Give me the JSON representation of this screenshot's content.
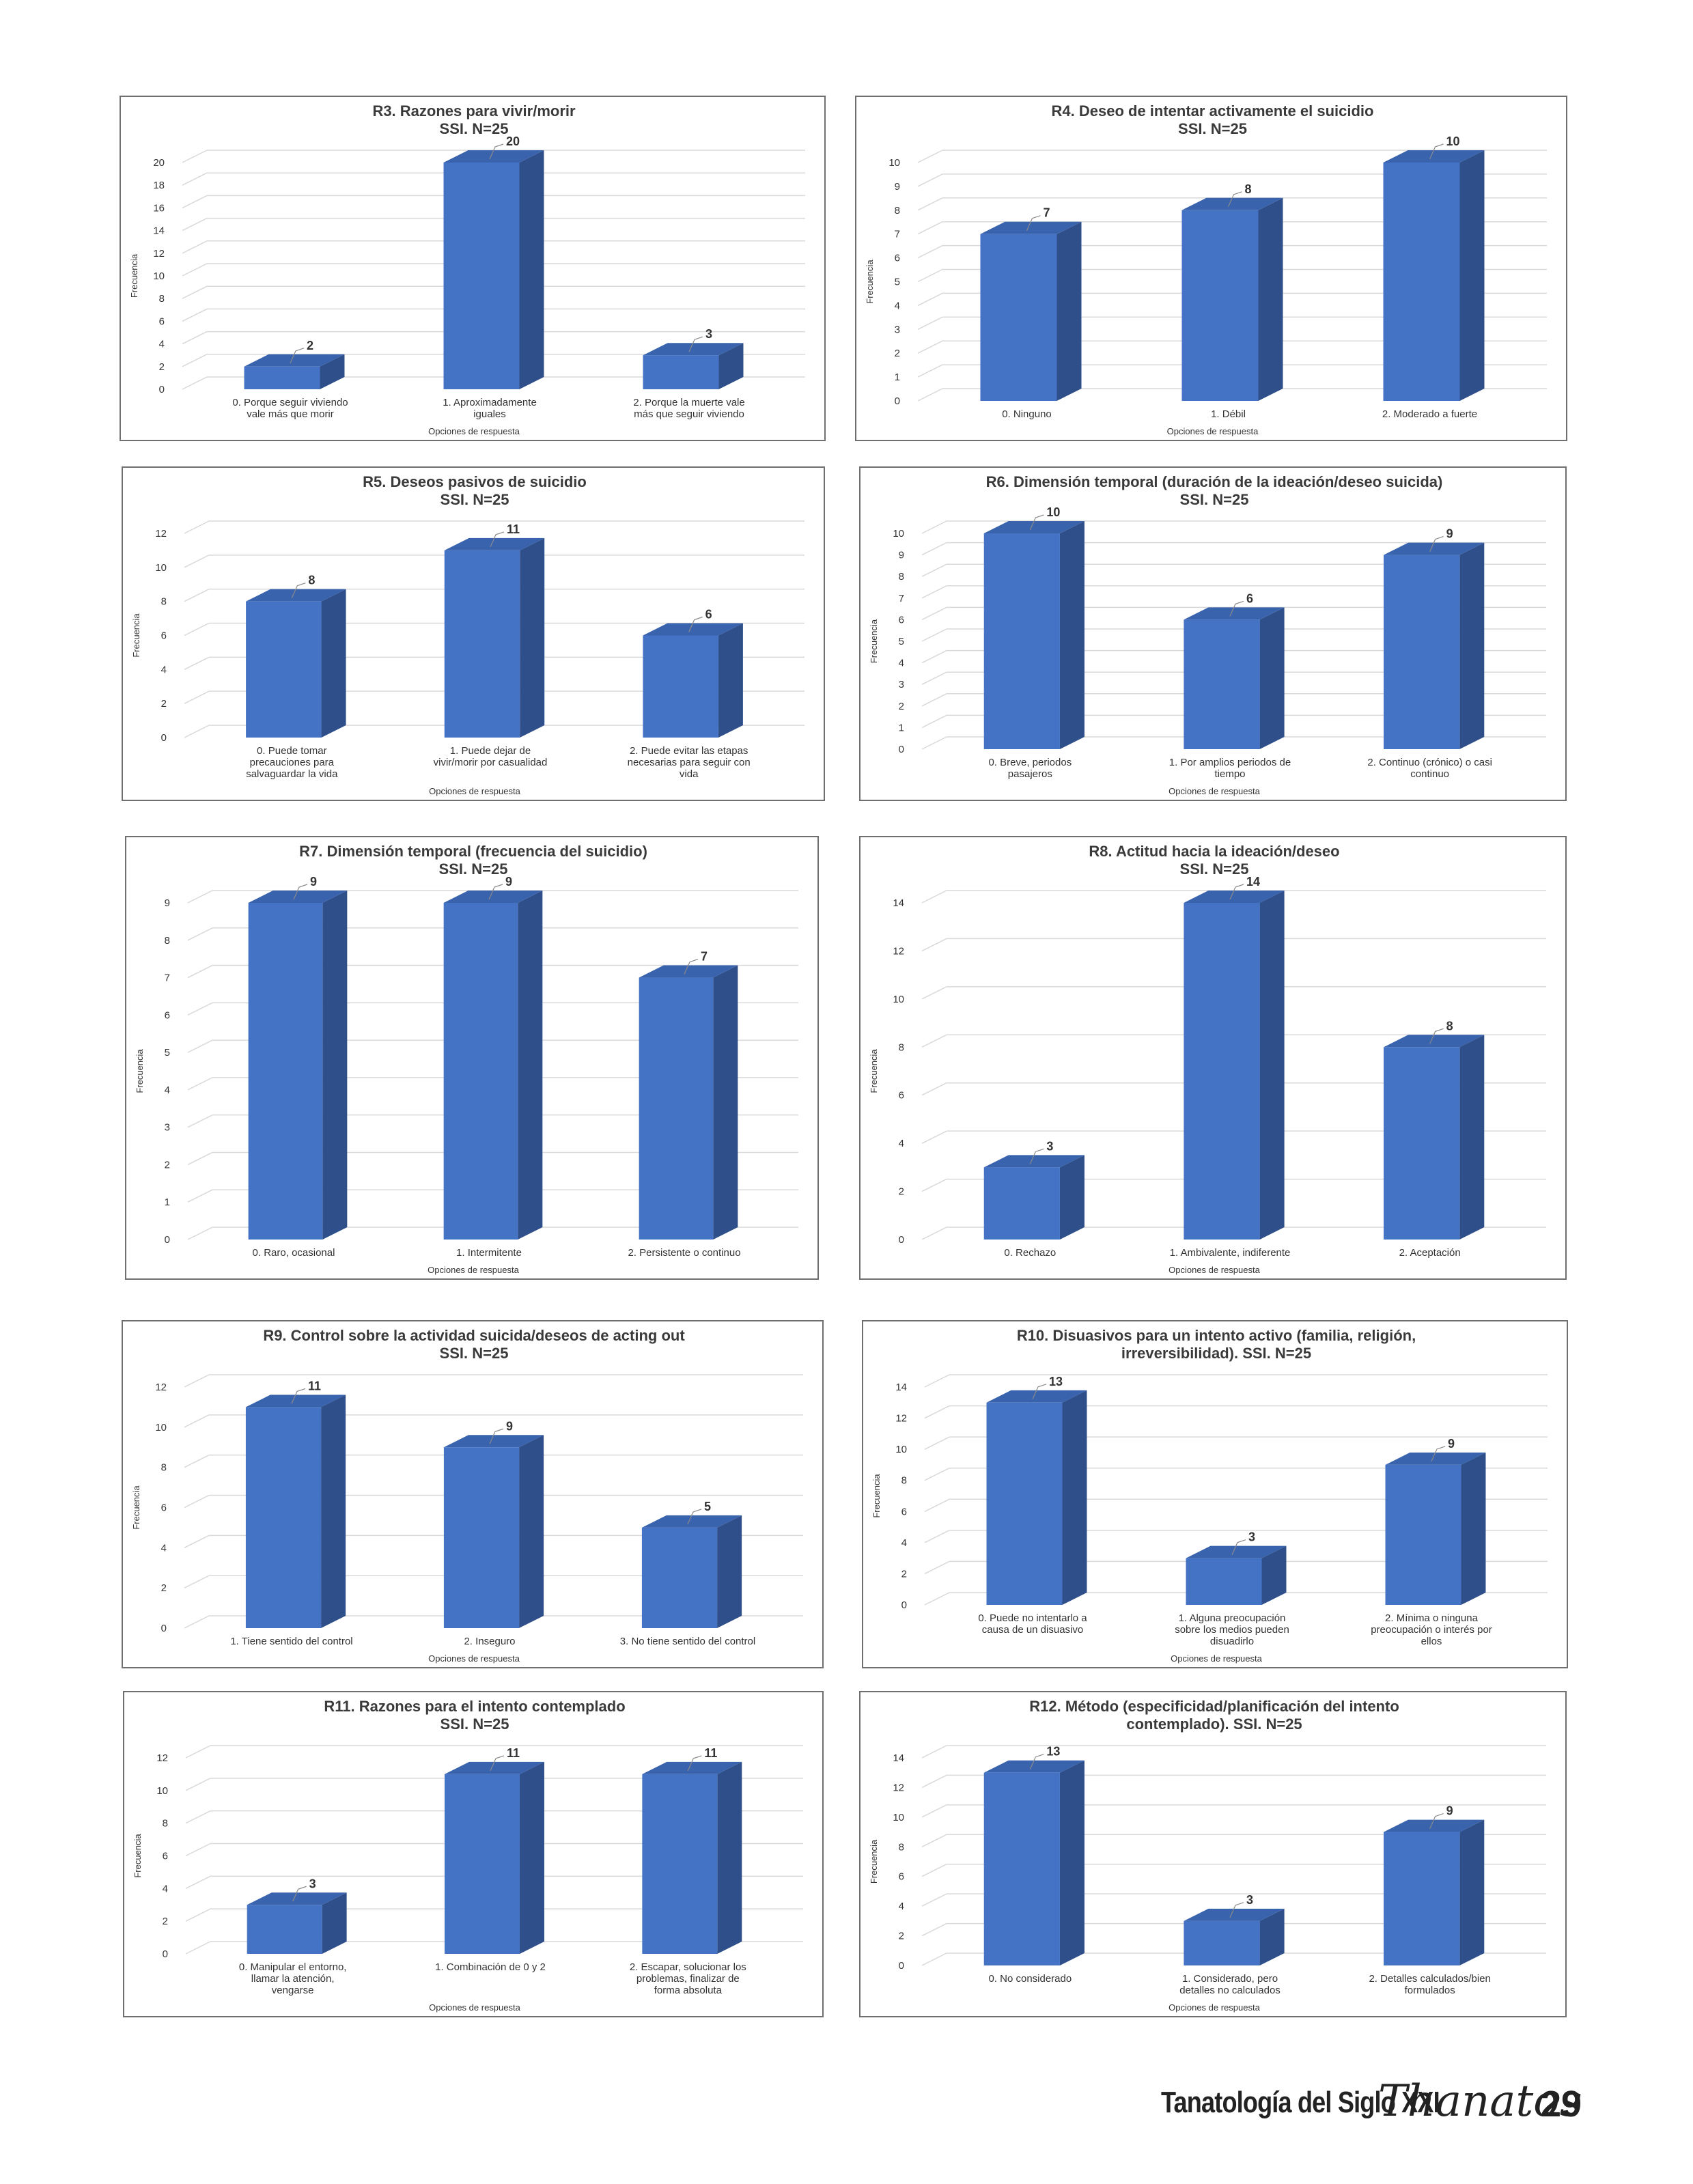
{
  "footer": {
    "publication": "Tanatología del Siglo XXI",
    "logo": "Thanatos",
    "page": "29"
  },
  "colors": {
    "bar_front": "#4472c4",
    "bar_side": "#2f4f8a",
    "bar_top": "#3a63ad",
    "grid": "#d9d9d9",
    "text": "#333333"
  },
  "chart_data": [
    {
      "type": "bar",
      "title": "R3. Razones para vivir/morir",
      "subtitle": "SSI. N=25",
      "xlabel": "Opciones de respuesta",
      "ylabel": "Frecuencia",
      "categories": [
        [
          "0. Porque seguir viviendo",
          "vale más que morir"
        ],
        [
          "1. Aproximadamente",
          "iguales"
        ],
        [
          "2. Porque la muerte vale",
          "más que seguir viviendo"
        ]
      ],
      "values": [
        2,
        20,
        3
      ],
      "ylim": [
        0,
        20
      ],
      "yticks": [
        0,
        2,
        4,
        6,
        8,
        10,
        12,
        14,
        16,
        18,
        20
      ],
      "grid": true
    },
    {
      "type": "bar",
      "title": "R4. Deseo de intentar activamente el suicidio",
      "subtitle": "SSI. N=25",
      "xlabel": "Opciones de respuesta",
      "ylabel": "Frecuencia",
      "categories": [
        [
          "0. Ninguno"
        ],
        [
          "1. Débil"
        ],
        [
          "2. Moderado a fuerte"
        ]
      ],
      "values": [
        7,
        8,
        10
      ],
      "ylim": [
        0,
        10
      ],
      "yticks": [
        0,
        1,
        2,
        3,
        4,
        5,
        6,
        7,
        8,
        9,
        10
      ],
      "grid": true
    },
    {
      "type": "bar",
      "title": "R5. Deseos pasivos de suicidio",
      "subtitle": "SSI. N=25",
      "xlabel": "Opciones de respuesta",
      "ylabel": "Frecuencia",
      "categories": [
        [
          "0. Puede tomar",
          "precauciones para",
          "salvaguardar la vida"
        ],
        [
          "1. Puede dejar de",
          "vivir/morir por casualidad"
        ],
        [
          "2. Puede evitar las etapas",
          "necesarias para seguir con",
          "vida"
        ]
      ],
      "values": [
        8,
        11,
        6
      ],
      "ylim": [
        0,
        12
      ],
      "yticks": [
        0,
        2,
        4,
        6,
        8,
        10,
        12
      ],
      "grid": true
    },
    {
      "type": "bar",
      "title": "R6. Dimensión temporal (duración de la ideación/deseo suicida)",
      "subtitle": "SSI. N=25",
      "xlabel": "Opciones de respuesta",
      "ylabel": "Frecuencia",
      "categories": [
        [
          "0. Breve, periodos",
          "pasajeros"
        ],
        [
          "1. Por amplios periodos de",
          "tiempo"
        ],
        [
          "2. Continuo (crónico) o casi",
          "continuo"
        ]
      ],
      "values": [
        10,
        6,
        9
      ],
      "ylim": [
        0,
        10
      ],
      "yticks": [
        0,
        1,
        2,
        3,
        4,
        5,
        6,
        7,
        8,
        9,
        10
      ],
      "grid": true
    },
    {
      "type": "bar",
      "title": "R7. Dimensión temporal (frecuencia del suicidio)",
      "subtitle": "SSI. N=25",
      "xlabel": "Opciones de respuesta",
      "ylabel": "Frecuencia",
      "categories": [
        [
          "0. Raro, ocasional"
        ],
        [
          "1. Intermitente"
        ],
        [
          "2. Persistente o continuo"
        ]
      ],
      "values": [
        9,
        9,
        7
      ],
      "ylim": [
        0,
        9
      ],
      "yticks": [
        0,
        1,
        2,
        3,
        4,
        5,
        6,
        7,
        8,
        9
      ],
      "grid": true
    },
    {
      "type": "bar",
      "title": "R8. Actitud hacia la ideación/deseo",
      "subtitle": "SSI. N=25",
      "xlabel": "Opciones de respuesta",
      "ylabel": "Frecuencia",
      "categories": [
        [
          "0. Rechazo"
        ],
        [
          "1. Ambivalente, indiferente"
        ],
        [
          "2. Aceptación"
        ]
      ],
      "values": [
        3,
        14,
        8
      ],
      "ylim": [
        0,
        14
      ],
      "yticks": [
        0,
        2,
        4,
        6,
        8,
        10,
        12,
        14
      ],
      "grid": true
    },
    {
      "type": "bar",
      "title": "R9. Control sobre la actividad suicida/deseos de acting out",
      "subtitle": "SSI. N=25",
      "xlabel": "Opciones de respuesta",
      "ylabel": "Frecuencia",
      "categories": [
        [
          "1. Tiene sentido del control"
        ],
        [
          "2. Inseguro"
        ],
        [
          "3. No tiene sentido del control"
        ]
      ],
      "values": [
        11,
        9,
        5
      ],
      "ylim": [
        0,
        12
      ],
      "yticks": [
        0,
        2,
        4,
        6,
        8,
        10,
        12
      ],
      "grid": true
    },
    {
      "type": "bar",
      "title": "R10. Disuasivos para un intento activo (familia, religión,",
      "subtitle": "irreversibilidad). SSI. N=25",
      "xlabel": "Opciones de respuesta",
      "ylabel": "Frecuencia",
      "categories": [
        [
          "0. Puede no intentarlo a",
          "causa de un disuasivo"
        ],
        [
          "1. Alguna preocupación",
          "sobre los medios pueden",
          "disuadirlo"
        ],
        [
          "2. Mínima o ninguna",
          "preocupación o interés por",
          "ellos"
        ]
      ],
      "values": [
        13,
        3,
        9
      ],
      "ylim": [
        0,
        14
      ],
      "yticks": [
        0,
        2,
        4,
        6,
        8,
        10,
        12,
        14
      ],
      "grid": true
    },
    {
      "type": "bar",
      "title": "R11. Razones para el intento contemplado",
      "subtitle": "SSI. N=25",
      "xlabel": "Opciones de respuesta",
      "ylabel": "Frecuencia",
      "categories": [
        [
          "0. Manipular el entorno,",
          "llamar la atención,",
          "vengarse"
        ],
        [
          "1. Combinación de 0 y 2"
        ],
        [
          "2. Escapar, solucionar los",
          "problemas, finalizar de",
          "forma absoluta"
        ]
      ],
      "values": [
        3,
        11,
        11
      ],
      "ylim": [
        0,
        12
      ],
      "yticks": [
        0,
        2,
        4,
        6,
        8,
        10,
        12
      ],
      "grid": true
    },
    {
      "type": "bar",
      "title": "R12. Método (especificidad/planificación del intento",
      "subtitle": "contemplado). SSI. N=25",
      "xlabel": "Opciones de respuesta",
      "ylabel": "Frecuencia",
      "categories": [
        [
          "0. No considerado"
        ],
        [
          "1. Considerado, pero",
          "detalles no calculados"
        ],
        [
          "2. Detalles calculados/bien",
          "formulados"
        ]
      ],
      "values": [
        13,
        3,
        9
      ],
      "ylim": [
        0,
        14
      ],
      "yticks": [
        0,
        2,
        4,
        6,
        8,
        10,
        12,
        14
      ],
      "grid": true
    }
  ]
}
